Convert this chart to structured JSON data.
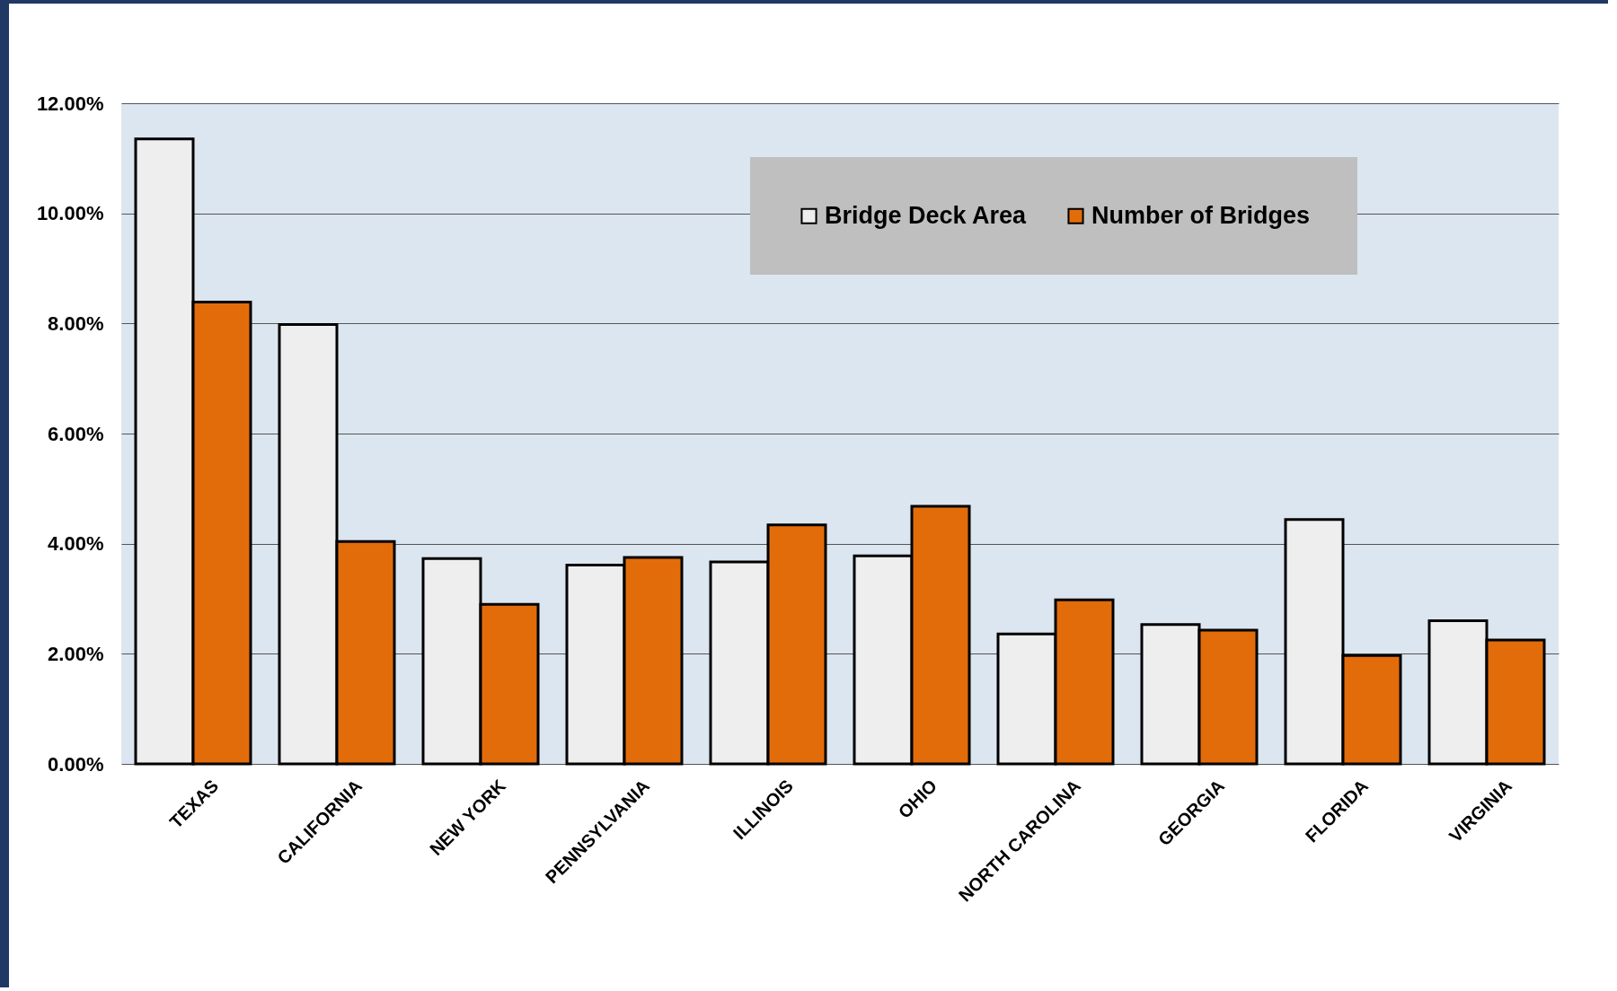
{
  "chart_data": {
    "type": "bar",
    "categories": [
      "TEXAS",
      "CALIFORNIA",
      "NEW YORK",
      "PENNSYLVANIA",
      "ILLINOIS",
      "OHIO",
      "NORTH CAROLINA",
      "GEORGIA",
      "FLORIDA",
      "VIRGINIA"
    ],
    "series": [
      {
        "name": "Bridge Deck Area",
        "color": "#eeeeee",
        "values": [
          11.35,
          7.98,
          3.73,
          3.61,
          3.67,
          3.78,
          2.36,
          2.53,
          4.44,
          2.6
        ]
      },
      {
        "name": "Number of Bridges",
        "color": "#e36c0a",
        "values": [
          8.39,
          4.04,
          2.9,
          3.75,
          4.34,
          4.68,
          2.98,
          2.43,
          1.97,
          2.25
        ]
      }
    ],
    "ylim": [
      0,
      12
    ],
    "yticks": [
      {
        "value": 0,
        "label": "0.00%"
      },
      {
        "value": 2,
        "label": "2.00%"
      },
      {
        "value": 4,
        "label": "4.00%"
      },
      {
        "value": 6,
        "label": "6.00%"
      },
      {
        "value": 8,
        "label": "8.00%"
      },
      {
        "value": 10,
        "label": "10.00%"
      },
      {
        "value": 12,
        "label": "12.00%"
      }
    ],
    "grid": "y",
    "legend": "top right"
  }
}
